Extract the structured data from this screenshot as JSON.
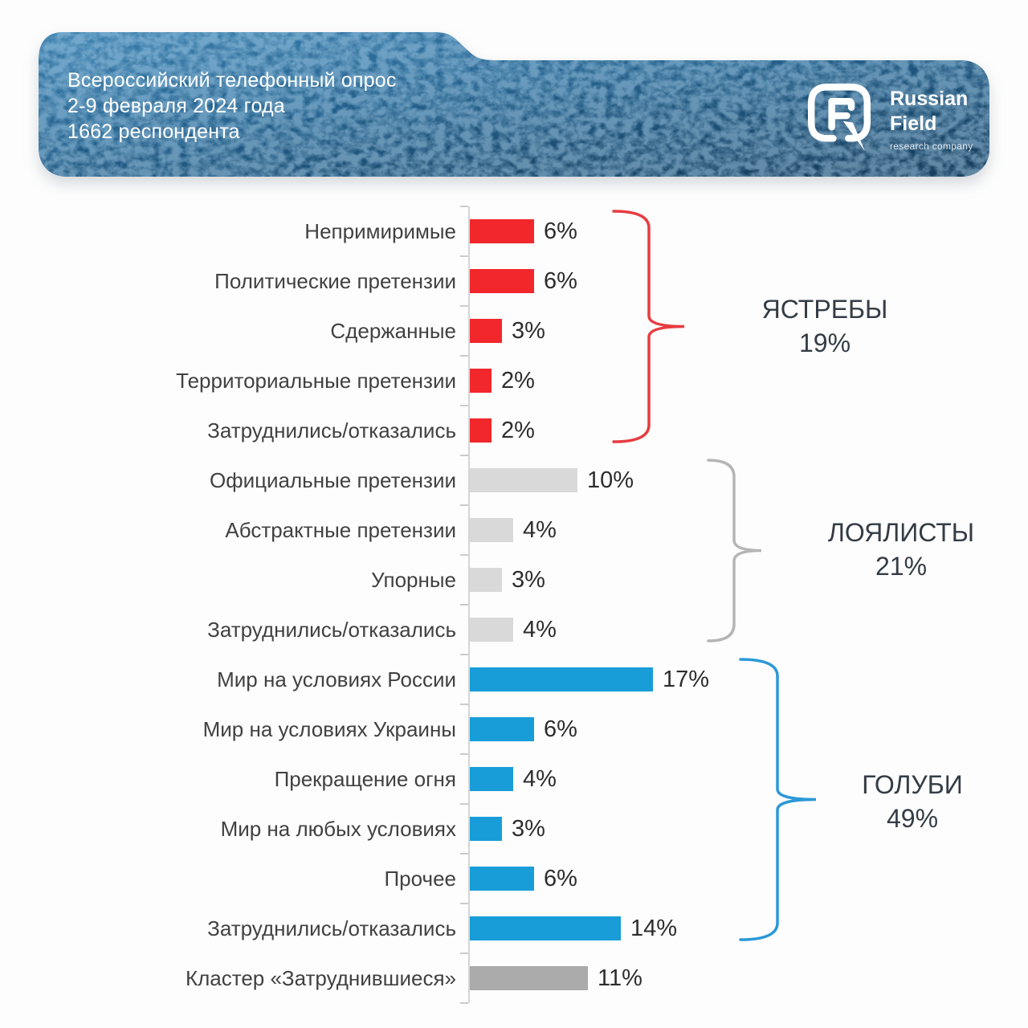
{
  "header": {
    "line1": "Всероссийский телефонный опрос",
    "line2": "2-9 февраля 2024 года",
    "line3": "1662 респондента"
  },
  "logo": {
    "name_line1": "Russian",
    "name_line2": "Field",
    "tagline": "research company"
  },
  "colors": {
    "banner_blue_light": "#3a7fae",
    "banner_blue_dark": "#153d5d",
    "hawk_red": "#f1272c",
    "loyalist_light_gray": "#d9d9d9",
    "dove_blue": "#189dd9",
    "cluster_gray": "#ababab",
    "axis_gray": "#d3d5d7",
    "label_gray": "#414141"
  },
  "chart_data": {
    "type": "bar",
    "orientation": "horizontal",
    "unit": "%",
    "xlim": [
      0,
      18
    ],
    "grid": false,
    "categories": [
      "Непримиримые",
      "Политические претензии",
      "Сдержанные",
      "Территориальные претензии",
      "Затруднились/отказались",
      "Официальные претензии",
      "Абстрактные претензии",
      "Упорные",
      "Затруднились/отказались",
      "Мир на условиях России",
      "Мир на условиях Украины",
      "Прекращение огня",
      "Мир на любых условиях",
      "Прочее",
      "Затруднились/отказались",
      "Кластер «Затруднившиеся»"
    ],
    "values": [
      6,
      6,
      3,
      2,
      2,
      10,
      4,
      3,
      4,
      17,
      6,
      4,
      3,
      6,
      14,
      11
    ],
    "value_labels": [
      "6%",
      "6%",
      "3%",
      "2%",
      "2%",
      "10%",
      "4%",
      "3%",
      "4%",
      "17%",
      "6%",
      "4%",
      "3%",
      "6%",
      "14%",
      "11%"
    ],
    "bar_colors": [
      "#f1272c",
      "#f1272c",
      "#f1272c",
      "#f1272c",
      "#f1272c",
      "#d9d9d9",
      "#d9d9d9",
      "#d9d9d9",
      "#d9d9d9",
      "#189dd9",
      "#189dd9",
      "#189dd9",
      "#189dd9",
      "#189dd9",
      "#189dd9",
      "#ababab"
    ],
    "groups": [
      {
        "label": "ЯСТРЕБЫ",
        "total": "19%",
        "first_row": 0,
        "last_row": 4,
        "brace_color": "#e73c41"
      },
      {
        "label": "ЛОЯЛИСТЫ",
        "total": "21%",
        "first_row": 5,
        "last_row": 8,
        "brace_color": "#b5b5b5"
      },
      {
        "label": "ГОЛУБИ",
        "total": "49%",
        "first_row": 9,
        "last_row": 14,
        "brace_color": "#2b99d6"
      }
    ]
  }
}
